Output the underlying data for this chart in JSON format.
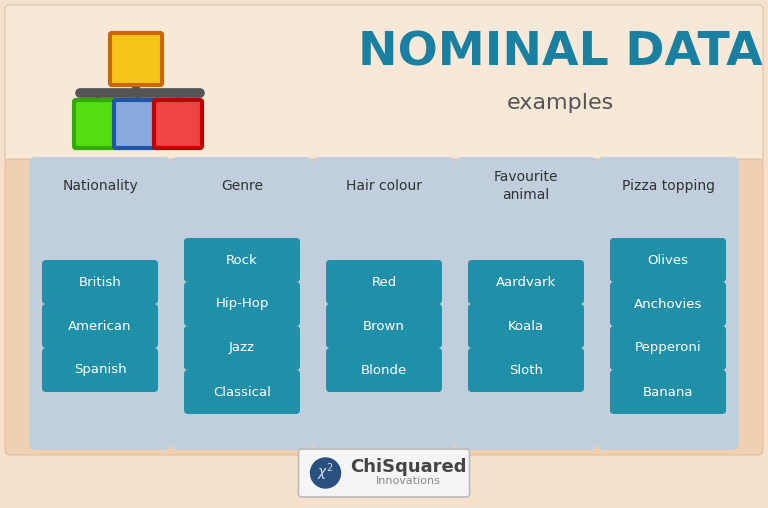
{
  "title": "NOMINAL DATA",
  "subtitle": "examples",
  "title_color": "#1a80a2",
  "subtitle_color": "#555555",
  "bg_outer": "#f5e0cc",
  "bg_header": "#f8e8d8",
  "bg_body": "#f0d0b0",
  "column_bg": "#c0cedd",
  "item_bg": "#2090a8",
  "item_text_color": "#ffffff",
  "col_header_color": "#333333",
  "columns": [
    {
      "header": "Nationality",
      "items": [
        "British",
        "American",
        "Spanish"
      ]
    },
    {
      "header": "Genre",
      "items": [
        "Rock",
        "Hip-Hop",
        "Jazz",
        "Classical"
      ]
    },
    {
      "header": "Hair colour",
      "items": [
        "Red",
        "Brown",
        "Blonde"
      ]
    },
    {
      "header": "Favourite\nanimal",
      "items": [
        "Aardvark",
        "Koala",
        "Sloth"
      ]
    },
    {
      "header": "Pizza topping",
      "items": [
        "Olives",
        "Anchovies",
        "Pepperoni",
        "Banana"
      ]
    }
  ],
  "sq_top_fill": "#f5c518",
  "sq_top_edge": "#cc6600",
  "sq_green_fill": "#55dd11",
  "sq_green_edge": "#33aa00",
  "sq_blue_fill": "#88aadd",
  "sq_blue_edge": "#2255aa",
  "sq_red_fill": "#ee4444",
  "sq_red_edge": "#bb0000",
  "connector_color": "#555555",
  "logo_border": "#bbbbbb",
  "logo_bg": "#f5f5f5",
  "logo_text_main": "#444444",
  "logo_text_sub": "#888888",
  "logo_circle_color": "#2a5080"
}
